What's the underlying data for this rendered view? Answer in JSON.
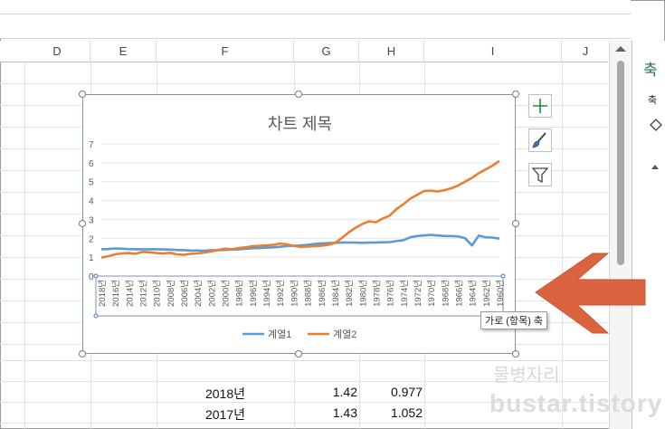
{
  "columns": [
    "D",
    "E",
    "F",
    "G",
    "H",
    "I",
    "J"
  ],
  "table": [
    {
      "year": "2018년",
      "g": "1.42",
      "h": "0.977"
    },
    {
      "year": "2017년",
      "g": "1.43",
      "h": "1.052"
    }
  ],
  "side_pane": {
    "title": "축",
    "subtitle": "축"
  },
  "tooltip": "가로 (항목) 축",
  "watermark": {
    "line1": "물병자리",
    "line2": "bustar.tistory"
  },
  "colors": {
    "series1": "#5b9bd5",
    "series2": "#ed7d31",
    "arrow": "#d9643f",
    "plus": "#1e8a3a"
  },
  "icons": [
    "plus-icon",
    "brush-icon",
    "filter-icon"
  ],
  "chart_data": {
    "type": "line",
    "title": "차트 제목",
    "ylim": [
      0,
      7
    ],
    "yticks": [
      "0",
      "1",
      "2",
      "3",
      "4",
      "5",
      "6",
      "7"
    ],
    "grid": true,
    "legend": "bottom",
    "x": [
      "2018년",
      "2017년",
      "2016년",
      "2015년",
      "2014년",
      "2013년",
      "2012년",
      "2011년",
      "2010년",
      "2009년",
      "2008년",
      "2007년",
      "2006년",
      "2005년",
      "2004년",
      "2003년",
      "2002년",
      "2001년",
      "2000년",
      "1999년",
      "1998년",
      "1997년",
      "1996년",
      "1995년",
      "1994년",
      "1993년",
      "1992년",
      "1991년",
      "1990년",
      "1989년",
      "1988년",
      "1987년",
      "1986년",
      "1985년",
      "1984년",
      "1983년",
      "1982년",
      "1981년",
      "1980년",
      "1979년",
      "1978년",
      "1977년",
      "1976년",
      "1975년",
      "1974년",
      "1973년",
      "1972년",
      "1971년",
      "1970년",
      "1969년",
      "1968년",
      "1967년",
      "1966년",
      "1965年",
      "1964년",
      "1963년",
      "1962년",
      "1961년",
      "1960년"
    ],
    "xticks": [
      "2018년",
      "2016년",
      "2014년",
      "2012년",
      "2010년",
      "2008년",
      "2006년",
      "2004년",
      "2002년",
      "2000년",
      "1998년",
      "1996년",
      "1994년",
      "1992년",
      "1990년",
      "1988년",
      "1986년",
      "1984년",
      "1982년",
      "1980년",
      "1978년",
      "1976년",
      "1974년",
      "1972년",
      "1970년",
      "1968년",
      "1966년",
      "1964년",
      "1962년",
      "1960년"
    ],
    "series": [
      {
        "name": "계열1",
        "values": [
          1.42,
          1.43,
          1.46,
          1.45,
          1.43,
          1.42,
          1.42,
          1.42,
          1.42,
          1.41,
          1.4,
          1.38,
          1.37,
          1.35,
          1.35,
          1.34,
          1.36,
          1.37,
          1.38,
          1.4,
          1.42,
          1.45,
          1.47,
          1.48,
          1.5,
          1.52,
          1.55,
          1.58,
          1.6,
          1.62,
          1.65,
          1.7,
          1.72,
          1.74,
          1.76,
          1.78,
          1.78,
          1.77,
          1.76,
          1.77,
          1.78,
          1.79,
          1.8,
          1.85,
          1.9,
          2.05,
          2.12,
          2.15,
          2.18,
          2.15,
          2.12,
          2.12,
          2.1,
          2.0,
          1.62,
          2.15,
          2.05,
          2.04,
          1.98
        ]
      },
      {
        "name": "계열2",
        "values": [
          0.977,
          1.052,
          1.15,
          1.2,
          1.22,
          1.18,
          1.28,
          1.26,
          1.22,
          1.2,
          1.23,
          1.15,
          1.12,
          1.18,
          1.2,
          1.24,
          1.3,
          1.38,
          1.45,
          1.42,
          1.48,
          1.52,
          1.58,
          1.6,
          1.62,
          1.65,
          1.72,
          1.68,
          1.6,
          1.55,
          1.56,
          1.58,
          1.6,
          1.65,
          1.75,
          2.0,
          2.3,
          2.55,
          2.75,
          2.9,
          2.85,
          3.05,
          3.2,
          3.55,
          3.8,
          4.1,
          4.3,
          4.5,
          4.52,
          4.48,
          4.55,
          4.65,
          4.8,
          5.0,
          5.2,
          5.45,
          5.65,
          5.85,
          6.1
        ]
      }
    ]
  }
}
